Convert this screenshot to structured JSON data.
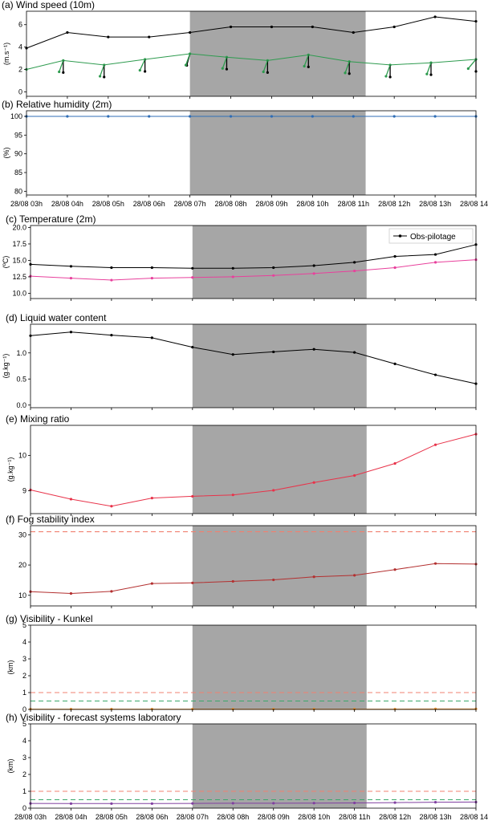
{
  "colors": {
    "shade": "#a6a6a6",
    "obs": "#000000",
    "model_green": "#2e9b4f",
    "humidity_blue": "#2f6db5",
    "temp_pink": "#e8409c",
    "mix_red": "#e8334a",
    "fsi_dark_red": "#b33030",
    "threshold_red": "#f08070",
    "threshold_green": "#3aa86b",
    "vis_orange": "#e69030",
    "vis_purple": "#8040a0"
  },
  "time_labels": [
    "28/08 03h",
    "28/08 04h",
    "28/08 05h",
    "28/08 06h",
    "28/08 07h",
    "28/08 08h",
    "28/08 09h",
    "28/08 10h",
    "28/08 11h",
    "28/08 12h",
    "28/08 13h",
    "28/08 14h"
  ],
  "legend": {
    "obs_label": "Obs-pilotage"
  },
  "chart_data": [
    {
      "id": "a",
      "type": "line",
      "title": "(a) Wind speed (10m)",
      "ylabel": "(m.s⁻¹)",
      "ylim": [
        -0.4,
        7.2
      ],
      "yticks": [
        0,
        2,
        4,
        6
      ],
      "x": [
        3.0,
        4.0,
        5.0,
        6.0,
        7.0,
        8.0,
        9.0,
        10.0,
        11.0,
        12.0,
        13.0,
        14.0
      ],
      "shade": [
        7.0,
        11.3
      ],
      "series": [
        {
          "color_key": "obs",
          "x": [
            3.0,
            4.0,
            5.0,
            6.0,
            7.0,
            8.0,
            9.0,
            10.0,
            11.0,
            12.0,
            13.0,
            14.0
          ],
          "values": [
            3.9,
            5.3,
            4.9,
            4.9,
            5.3,
            5.8,
            5.8,
            5.8,
            5.3,
            5.8,
            6.7,
            6.3
          ]
        },
        {
          "color_key": "model_green",
          "x": [
            3.0,
            3.9,
            4.9,
            5.9,
            7.0,
            7.9,
            8.9,
            9.9,
            10.9,
            11.9,
            12.9,
            14.0
          ],
          "values": [
            2.0,
            2.8,
            2.4,
            2.9,
            3.4,
            3.1,
            2.8,
            3.3,
            2.7,
            2.4,
            2.6,
            2.9
          ]
        }
      ],
      "wind_barbs": [
        {
          "x": 3.9,
          "y": 2.8,
          "obs_dir": 180,
          "model_dir": 200
        },
        {
          "x": 4.9,
          "y": 2.4,
          "obs_dir": 180,
          "model_dir": 200
        },
        {
          "x": 5.9,
          "y": 2.9,
          "obs_dir": 180,
          "model_dir": 205
        },
        {
          "x": 7.0,
          "y": 3.4,
          "obs_dir": 195,
          "model_dir": 200
        },
        {
          "x": 7.9,
          "y": 3.1,
          "obs_dir": 180,
          "model_dir": 200
        },
        {
          "x": 8.9,
          "y": 2.8,
          "obs_dir": 180,
          "model_dir": 200
        },
        {
          "x": 9.9,
          "y": 3.3,
          "obs_dir": 180,
          "model_dir": 200
        },
        {
          "x": 10.9,
          "y": 2.7,
          "obs_dir": 180,
          "model_dir": 200
        },
        {
          "x": 11.9,
          "y": 2.4,
          "obs_dir": 180,
          "model_dir": 200
        },
        {
          "x": 12.9,
          "y": 2.6,
          "obs_dir": 180,
          "model_dir": 200
        },
        {
          "x": 14.0,
          "y": 2.9,
          "obs_dir": 180,
          "model_dir": 220
        }
      ]
    },
    {
      "id": "b",
      "type": "line",
      "title": "(b) Relative humidity (2m)",
      "ylabel": "(%)",
      "ylim": [
        79,
        101.5
      ],
      "yticks": [
        80,
        85,
        90,
        95,
        100
      ],
      "shade": [
        7.0,
        11.3
      ],
      "xtick_labels": true,
      "series": [
        {
          "color_key": "humidity_blue",
          "x": [
            3.0,
            4.0,
            5.0,
            6.0,
            7.0,
            8.0,
            9.0,
            10.0,
            11.0,
            12.0,
            13.0,
            14.0
          ],
          "values": [
            100,
            100,
            100,
            100,
            100,
            100,
            100,
            100,
            100,
            100,
            100,
            100
          ]
        }
      ]
    },
    {
      "id": "c",
      "type": "line",
      "title": "(c) Temperature (2m)",
      "ylabel": "(ºC)",
      "ylim": [
        9.2,
        20.3
      ],
      "yticks": [
        10.0,
        12.5,
        15.0,
        17.5,
        20.0
      ],
      "ytick_decimals": 1,
      "shade": [
        7.0,
        11.3
      ],
      "legend": "top-right",
      "series": [
        {
          "color_key": "obs",
          "x": [
            3.0,
            4.0,
            5.0,
            6.0,
            7.0,
            8.0,
            9.0,
            10.0,
            11.0,
            12.0,
            13.0,
            14.0
          ],
          "values": [
            14.4,
            14.1,
            13.9,
            13.9,
            13.8,
            13.8,
            13.9,
            14.2,
            14.7,
            15.6,
            15.9,
            17.4
          ]
        },
        {
          "color_key": "temp_pink",
          "x": [
            3.0,
            4.0,
            5.0,
            6.0,
            7.0,
            8.0,
            9.0,
            10.0,
            11.0,
            12.0,
            13.0,
            14.0
          ],
          "values": [
            12.6,
            12.3,
            12.0,
            12.3,
            12.4,
            12.5,
            12.7,
            13.0,
            13.4,
            13.9,
            14.7,
            15.1
          ]
        }
      ]
    },
    {
      "id": "d",
      "type": "line",
      "title": "(d) Liquid water content",
      "ylabel": "(g.kg⁻¹)",
      "ylim": [
        -0.05,
        1.55
      ],
      "yticks": [
        0.0,
        0.5,
        1.0
      ],
      "ytick_decimals": 1,
      "shade": [
        7.0,
        11.3
      ],
      "series": [
        {
          "color_key": "obs",
          "x": [
            3.0,
            4.0,
            5.0,
            6.0,
            7.0,
            8.0,
            9.0,
            10.0,
            11.0,
            12.0,
            13.0,
            14.0
          ],
          "values": [
            1.33,
            1.4,
            1.34,
            1.29,
            1.11,
            0.97,
            1.02,
            1.07,
            1.01,
            0.79,
            0.58,
            0.41
          ]
        }
      ]
    },
    {
      "id": "e",
      "type": "line",
      "title": "(e) Mixing ratio",
      "ylabel": "(g.kg⁻¹)",
      "ylim": [
        8.35,
        10.85
      ],
      "yticks": [
        9,
        10
      ],
      "shade": [
        7.0,
        11.3
      ],
      "series": [
        {
          "color_key": "mix_red",
          "x": [
            3.0,
            4.0,
            5.0,
            6.0,
            7.0,
            8.0,
            9.0,
            10.0,
            11.0,
            12.0,
            13.0,
            14.0
          ],
          "values": [
            9.02,
            8.76,
            8.56,
            8.79,
            8.84,
            8.88,
            9.01,
            9.23,
            9.43,
            9.77,
            10.3,
            10.6
          ]
        }
      ]
    },
    {
      "id": "f",
      "type": "line",
      "title": "(f) Fog stability index",
      "ylim": [
        6.5,
        33
      ],
      "yticks": [
        10,
        20,
        30
      ],
      "shade": [
        7.0,
        11.3
      ],
      "hlines": [
        {
          "y": 31.0,
          "color_key": "threshold_red",
          "dashed": true
        }
      ],
      "series": [
        {
          "color_key": "fsi_dark_red",
          "x": [
            3.0,
            4.0,
            5.0,
            6.0,
            7.0,
            8.0,
            9.0,
            10.0,
            11.0,
            12.0,
            13.0,
            14.0
          ],
          "values": [
            11.2,
            10.6,
            11.3,
            13.9,
            14.1,
            14.6,
            15.1,
            16.1,
            16.6,
            18.5,
            20.5,
            20.3
          ]
        }
      ]
    },
    {
      "id": "g",
      "type": "line",
      "title": "(g) Visibility - Kunkel",
      "ylabel": "(km)",
      "ylim": [
        0,
        5
      ],
      "yticks": [
        0,
        1,
        2,
        3,
        4,
        5
      ],
      "shade": [
        7.0,
        11.3
      ],
      "hlines": [
        {
          "y": 1.0,
          "color_key": "threshold_red",
          "dashed": true
        },
        {
          "y": 0.5,
          "color_key": "threshold_green",
          "dashed": true
        }
      ],
      "series": [
        {
          "color_key": "vis_orange",
          "x": [
            3.0,
            4.0,
            5.0,
            6.0,
            7.0,
            8.0,
            9.0,
            10.0,
            11.0,
            12.0,
            13.0,
            14.0
          ],
          "values": [
            0.02,
            0.02,
            0.02,
            0.02,
            0.02,
            0.02,
            0.02,
            0.02,
            0.02,
            0.02,
            0.03,
            0.03
          ]
        }
      ]
    },
    {
      "id": "h",
      "type": "line",
      "title": "(h) Visibility - forecast systems laboratory",
      "ylabel": "(km)",
      "ylim": [
        0,
        5
      ],
      "yticks": [
        0,
        1,
        2,
        3,
        4,
        5
      ],
      "shade": [
        7.0,
        11.3
      ],
      "xtick_labels": true,
      "hlines": [
        {
          "y": 1.0,
          "color_key": "threshold_red",
          "dashed": true
        },
        {
          "y": 0.5,
          "color_key": "threshold_green",
          "dashed": true
        }
      ],
      "series": [
        {
          "color_key": "vis_purple",
          "x": [
            3.0,
            4.0,
            5.0,
            6.0,
            7.0,
            8.0,
            9.0,
            10.0,
            11.0,
            12.0,
            13.0,
            14.0
          ],
          "values": [
            0.28,
            0.27,
            0.27,
            0.27,
            0.28,
            0.29,
            0.29,
            0.3,
            0.31,
            0.33,
            0.35,
            0.36
          ]
        }
      ]
    }
  ]
}
